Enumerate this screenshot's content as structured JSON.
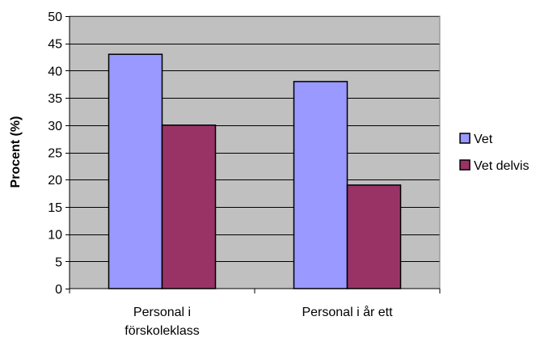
{
  "chart_data": {
    "type": "bar",
    "categories": [
      [
        "Personal i",
        "förskoleklass"
      ],
      [
        "Personal i år ett"
      ]
    ],
    "series": [
      {
        "name": "Vet",
        "values": [
          43,
          38
        ],
        "color": "#9999ff"
      },
      {
        "name": "Vet delvis",
        "values": [
          30,
          19
        ],
        "color": "#993366"
      }
    ],
    "title": "",
    "xlabel": "",
    "ylabel": "Procent (%)",
    "ylim": [
      0,
      50
    ],
    "yticks": [
      0,
      5,
      10,
      15,
      20,
      25,
      30,
      35,
      40,
      45,
      50
    ],
    "grid": true,
    "legend_position": "right",
    "plot_background": "#c0c0c0"
  }
}
